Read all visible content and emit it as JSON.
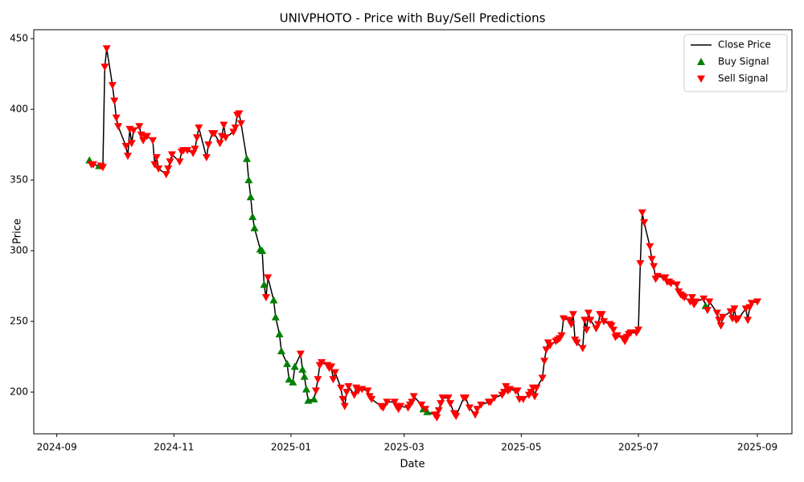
{
  "chart_data": {
    "type": "line",
    "title": "UNIVPHOTO - Price with Buy/Sell Predictions",
    "xlabel": "Date",
    "ylabel": "Price",
    "xlim": [
      "2024-08-20",
      "2025-09-19"
    ],
    "xticks": [
      "2024-09",
      "2024-11",
      "2025-01",
      "2025-03",
      "2025-05",
      "2025-07",
      "2025-09"
    ],
    "ylim": [
      170.5,
      456.3
    ],
    "yticks": [
      200,
      250,
      300,
      350,
      400,
      450
    ],
    "grid": false,
    "legend": "upper right",
    "series": [
      {
        "name": "Close Price",
        "kind": "line",
        "color": "#000000",
        "x": [
          "2024-09-18",
          "2024-09-19",
          "2024-09-20",
          "2024-09-23",
          "2024-09-24",
          "2024-09-25",
          "2024-09-26",
          "2024-09-27",
          "2024-09-30",
          "2024-10-01",
          "2024-10-02",
          "2024-10-03",
          "2024-10-07",
          "2024-10-08",
          "2024-10-09",
          "2024-10-10",
          "2024-10-11",
          "2024-10-14",
          "2024-10-15",
          "2024-10-16",
          "2024-10-17",
          "2024-10-18",
          "2024-10-21",
          "2024-10-22",
          "2024-10-23",
          "2024-10-24",
          "2024-10-28",
          "2024-10-29",
          "2024-10-30",
          "2024-10-31",
          "2024-11-04",
          "2024-11-05",
          "2024-11-06",
          "2024-11-08",
          "2024-11-11",
          "2024-11-12",
          "2024-11-13",
          "2024-11-14",
          "2024-11-18",
          "2024-11-19",
          "2024-11-21",
          "2024-11-22",
          "2024-11-25",
          "2024-11-26",
          "2024-11-27",
          "2024-11-28",
          "2024-12-02",
          "2024-12-03",
          "2024-12-04",
          "2024-12-05",
          "2024-12-06",
          "2024-12-09",
          "2024-12-10",
          "2024-12-11",
          "2024-12-12",
          "2024-12-13",
          "2024-12-16",
          "2024-12-17",
          "2024-12-18",
          "2024-12-19",
          "2024-12-20",
          "2024-12-23",
          "2024-12-24",
          "2024-12-26",
          "2024-12-27",
          "2024-12-30",
          "2024-12-31",
          "2025-01-02",
          "2025-01-03",
          "2025-01-06",
          "2025-01-07",
          "2025-01-08",
          "2025-01-09",
          "2025-01-10",
          "2025-01-13",
          "2025-01-14",
          "2025-01-15",
          "2025-01-16",
          "2025-01-17",
          "2025-01-20",
          "2025-01-21",
          "2025-01-22",
          "2025-01-23",
          "2025-01-24",
          "2025-01-27",
          "2025-01-28",
          "2025-01-29",
          "2025-01-30",
          "2025-01-31",
          "2025-02-03",
          "2025-02-04",
          "2025-02-05",
          "2025-02-07",
          "2025-02-10",
          "2025-02-11",
          "2025-02-12",
          "2025-02-17",
          "2025-02-18",
          "2025-02-20",
          "2025-02-24",
          "2025-02-25",
          "2025-02-26",
          "2025-02-27",
          "2025-03-03",
          "2025-03-04",
          "2025-03-05",
          "2025-03-06",
          "2025-03-10",
          "2025-03-11",
          "2025-03-12",
          "2025-03-13",
          "2025-03-17",
          "2025-03-18",
          "2025-03-19",
          "2025-03-20",
          "2025-03-21",
          "2025-03-24",
          "2025-03-25",
          "2025-03-27",
          "2025-03-28",
          "2025-04-01",
          "2025-04-02",
          "2025-04-04",
          "2025-04-07",
          "2025-04-08",
          "2025-04-10",
          "2025-04-14",
          "2025-04-15",
          "2025-04-17",
          "2025-04-21",
          "2025-04-22",
          "2025-04-23",
          "2025-04-24",
          "2025-04-25",
          "2025-04-28",
          "2025-04-29",
          "2025-04-30",
          "2025-05-02",
          "2025-05-05",
          "2025-05-06",
          "2025-05-07",
          "2025-05-08",
          "2025-05-09",
          "2025-05-12",
          "2025-05-13",
          "2025-05-14",
          "2025-05-15",
          "2025-05-16",
          "2025-05-19",
          "2025-05-20",
          "2025-05-21",
          "2025-05-22",
          "2025-05-23",
          "2025-05-26",
          "2025-05-27",
          "2025-05-28",
          "2025-05-29",
          "2025-05-30",
          "2025-06-02",
          "2025-06-03",
          "2025-06-04",
          "2025-06-05",
          "2025-06-06",
          "2025-06-09",
          "2025-06-10",
          "2025-06-11",
          "2025-06-12",
          "2025-06-13",
          "2025-06-16",
          "2025-06-17",
          "2025-06-18",
          "2025-06-19",
          "2025-06-20",
          "2025-06-23",
          "2025-06-24",
          "2025-06-25",
          "2025-06-26",
          "2025-06-27",
          "2025-06-30",
          "2025-07-01",
          "2025-07-02",
          "2025-07-03",
          "2025-07-04",
          "2025-07-07",
          "2025-07-08",
          "2025-07-09",
          "2025-07-10",
          "2025-07-11",
          "2025-07-14",
          "2025-07-15",
          "2025-07-16",
          "2025-07-17",
          "2025-07-18",
          "2025-07-21",
          "2025-07-22",
          "2025-07-23",
          "2025-07-24",
          "2025-07-25",
          "2025-07-28",
          "2025-07-29",
          "2025-07-30",
          "2025-07-31",
          "2025-08-04",
          "2025-08-05",
          "2025-08-06",
          "2025-08-07",
          "2025-08-11",
          "2025-08-12",
          "2025-08-13",
          "2025-08-14",
          "2025-08-18",
          "2025-08-19",
          "2025-08-20",
          "2025-08-21",
          "2025-08-22",
          "2025-08-26",
          "2025-08-27",
          "2025-08-28",
          "2025-08-29",
          "2025-09-01"
        ],
        "values": [
          364,
          361,
          361,
          360,
          360,
          359,
          430,
          443,
          417,
          406,
          394,
          388,
          374,
          367,
          386,
          376,
          385,
          388,
          382,
          378,
          381,
          381,
          378,
          361,
          366,
          358,
          354,
          358,
          363,
          368,
          363,
          370,
          371,
          371,
          369,
          372,
          380,
          387,
          366,
          375,
          383,
          383,
          376,
          381,
          389,
          380,
          384,
          387,
          396,
          397,
          390,
          365,
          350,
          338,
          324,
          316,
          301,
          300,
          276,
          267,
          281,
          265,
          253,
          241,
          229,
          220,
          209,
          207,
          218,
          227,
          216,
          211,
          202,
          194,
          195,
          201,
          209,
          219,
          221,
          219,
          217,
          218,
          209,
          214,
          203,
          195,
          190,
          200,
          204,
          198,
          203,
          201,
          202,
          201,
          197,
          195,
          190,
          189,
          193,
          193,
          190,
          188,
          190,
          189,
          191,
          193,
          197,
          191,
          188,
          188,
          186,
          184,
          182,
          187,
          192,
          196,
          196,
          192,
          185,
          183,
          196,
          196,
          189,
          184,
          188,
          191,
          193,
          193,
          196,
          198,
          200,
          204,
          201,
          202,
          201,
          201,
          195,
          195,
          198,
          200,
          203,
          197,
          203,
          210,
          222,
          230,
          235,
          233,
          236,
          237,
          238,
          240,
          252,
          251,
          248,
          255,
          237,
          235,
          231,
          251,
          244,
          256,
          251,
          245,
          248,
          255,
          255,
          250,
          248,
          247,
          244,
          239,
          240,
          238,
          236,
          239,
          241,
          242,
          242,
          244,
          291,
          327,
          320,
          303,
          294,
          289,
          280,
          282,
          281,
          281,
          278,
          278,
          277,
          276,
          271,
          269,
          268,
          267,
          264,
          267,
          262,
          264,
          266,
          261,
          258,
          264,
          256,
          251,
          247,
          253,
          257,
          252,
          259,
          251,
          252,
          259,
          251,
          260,
          263,
          264
        ]
      },
      {
        "name": "Buy Signal",
        "kind": "scatter",
        "marker": "up",
        "color": "#008000",
        "x": [
          "2024-09-18",
          "2024-09-23",
          "2024-12-09",
          "2024-12-10",
          "2024-12-11",
          "2024-12-12",
          "2024-12-13",
          "2024-12-16",
          "2024-12-17",
          "2024-12-18",
          "2024-12-23",
          "2024-12-24",
          "2024-12-26",
          "2024-12-27",
          "2024-12-30",
          "2024-12-31",
          "2025-01-02",
          "2025-01-03",
          "2025-01-07",
          "2025-01-08",
          "2025-01-09",
          "2025-01-10",
          "2025-01-13",
          "2025-03-11",
          "2025-03-13",
          "2025-08-05"
        ],
        "values": [
          364,
          360,
          365,
          350,
          338,
          324,
          316,
          301,
          300,
          276,
          265,
          253,
          241,
          229,
          220,
          209,
          207,
          218,
          216,
          211,
          202,
          194,
          195,
          188,
          186,
          261
        ]
      },
      {
        "name": "Sell Signal",
        "kind": "scatter",
        "marker": "down",
        "color": "#ff0000",
        "x": [
          "2024-09-19",
          "2024-09-20",
          "2024-09-24",
          "2024-09-25",
          "2024-09-26",
          "2024-09-27",
          "2024-09-30",
          "2024-10-01",
          "2024-10-02",
          "2024-10-03",
          "2024-10-07",
          "2024-10-08",
          "2024-10-09",
          "2024-10-10",
          "2024-10-11",
          "2024-10-14",
          "2024-10-15",
          "2024-10-16",
          "2024-10-17",
          "2024-10-18",
          "2024-10-21",
          "2024-10-22",
          "2024-10-23",
          "2024-10-24",
          "2024-10-28",
          "2024-10-29",
          "2024-10-30",
          "2024-10-31",
          "2024-11-04",
          "2024-11-05",
          "2024-11-06",
          "2024-11-08",
          "2024-11-11",
          "2024-11-12",
          "2024-11-13",
          "2024-11-14",
          "2024-11-18",
          "2024-11-19",
          "2024-11-21",
          "2024-11-22",
          "2024-11-25",
          "2024-11-26",
          "2024-11-27",
          "2024-11-28",
          "2024-12-02",
          "2024-12-03",
          "2024-12-04",
          "2024-12-05",
          "2024-12-06",
          "2024-12-19",
          "2024-12-20",
          "2025-01-06",
          "2025-01-14",
          "2025-01-15",
          "2025-01-16",
          "2025-01-17",
          "2025-01-20",
          "2025-01-21",
          "2025-01-22",
          "2025-01-23",
          "2025-01-24",
          "2025-01-27",
          "2025-01-28",
          "2025-01-29",
          "2025-01-30",
          "2025-01-31",
          "2025-02-03",
          "2025-02-04",
          "2025-02-05",
          "2025-02-07",
          "2025-02-10",
          "2025-02-11",
          "2025-02-12",
          "2025-02-17",
          "2025-02-18",
          "2025-02-20",
          "2025-02-24",
          "2025-02-25",
          "2025-02-26",
          "2025-02-27",
          "2025-03-03",
          "2025-03-04",
          "2025-03-05",
          "2025-03-06",
          "2025-03-10",
          "2025-03-12",
          "2025-03-17",
          "2025-03-18",
          "2025-03-19",
          "2025-03-20",
          "2025-03-21",
          "2025-03-24",
          "2025-03-25",
          "2025-03-27",
          "2025-03-28",
          "2025-04-01",
          "2025-04-02",
          "2025-04-04",
          "2025-04-07",
          "2025-04-08",
          "2025-04-10",
          "2025-04-14",
          "2025-04-15",
          "2025-04-17",
          "2025-04-21",
          "2025-04-22",
          "2025-04-23",
          "2025-04-24",
          "2025-04-25",
          "2025-04-28",
          "2025-04-29",
          "2025-04-30",
          "2025-05-02",
          "2025-05-05",
          "2025-05-06",
          "2025-05-07",
          "2025-05-08",
          "2025-05-09",
          "2025-05-12",
          "2025-05-13",
          "2025-05-14",
          "2025-05-15",
          "2025-05-16",
          "2025-05-19",
          "2025-05-20",
          "2025-05-21",
          "2025-05-22",
          "2025-05-23",
          "2025-05-26",
          "2025-05-27",
          "2025-05-28",
          "2025-05-29",
          "2025-05-30",
          "2025-06-02",
          "2025-06-03",
          "2025-06-04",
          "2025-06-05",
          "2025-06-06",
          "2025-06-09",
          "2025-06-10",
          "2025-06-11",
          "2025-06-12",
          "2025-06-13",
          "2025-06-16",
          "2025-06-17",
          "2025-06-18",
          "2025-06-19",
          "2025-06-20",
          "2025-06-23",
          "2025-06-24",
          "2025-06-25",
          "2025-06-26",
          "2025-06-27",
          "2025-06-30",
          "2025-07-01",
          "2025-07-02",
          "2025-07-03",
          "2025-07-04",
          "2025-07-07",
          "2025-07-08",
          "2025-07-09",
          "2025-07-10",
          "2025-07-11",
          "2025-07-14",
          "2025-07-15",
          "2025-07-16",
          "2025-07-17",
          "2025-07-18",
          "2025-07-21",
          "2025-07-22",
          "2025-07-23",
          "2025-07-24",
          "2025-07-25",
          "2025-07-28",
          "2025-07-29",
          "2025-07-30",
          "2025-07-31",
          "2025-08-04",
          "2025-08-06",
          "2025-08-07",
          "2025-08-11",
          "2025-08-12",
          "2025-08-13",
          "2025-08-14",
          "2025-08-18",
          "2025-08-19",
          "2025-08-20",
          "2025-08-21",
          "2025-08-22",
          "2025-08-26",
          "2025-08-27",
          "2025-08-28",
          "2025-08-29",
          "2025-09-01"
        ],
        "values": [
          361,
          361,
          360,
          359,
          430,
          443,
          417,
          406,
          394,
          388,
          374,
          367,
          386,
          376,
          385,
          388,
          382,
          378,
          381,
          381,
          378,
          361,
          366,
          358,
          354,
          358,
          363,
          368,
          363,
          370,
          371,
          371,
          369,
          372,
          380,
          387,
          366,
          375,
          383,
          383,
          376,
          381,
          389,
          380,
          384,
          387,
          396,
          397,
          390,
          267,
          281,
          227,
          201,
          209,
          219,
          221,
          219,
          217,
          218,
          209,
          214,
          203,
          195,
          190,
          200,
          204,
          198,
          203,
          201,
          202,
          201,
          197,
          195,
          190,
          189,
          193,
          193,
          190,
          188,
          190,
          189,
          191,
          193,
          197,
          191,
          188,
          184,
          182,
          187,
          192,
          196,
          196,
          192,
          185,
          183,
          196,
          196,
          189,
          184,
          188,
          191,
          193,
          193,
          196,
          198,
          200,
          204,
          201,
          202,
          201,
          201,
          195,
          195,
          198,
          200,
          203,
          197,
          203,
          210,
          222,
          230,
          235,
          233,
          236,
          237,
          238,
          240,
          252,
          251,
          248,
          255,
          237,
          235,
          231,
          251,
          244,
          256,
          251,
          245,
          248,
          255,
          255,
          250,
          248,
          247,
          244,
          239,
          240,
          238,
          236,
          239,
          241,
          242,
          242,
          244,
          291,
          327,
          320,
          303,
          294,
          289,
          280,
          282,
          281,
          281,
          278,
          278,
          277,
          276,
          271,
          269,
          268,
          267,
          264,
          267,
          262,
          264,
          266,
          258,
          264,
          256,
          251,
          247,
          253,
          257,
          252,
          259,
          251,
          252,
          259,
          251,
          260,
          263,
          264
        ]
      }
    ]
  }
}
